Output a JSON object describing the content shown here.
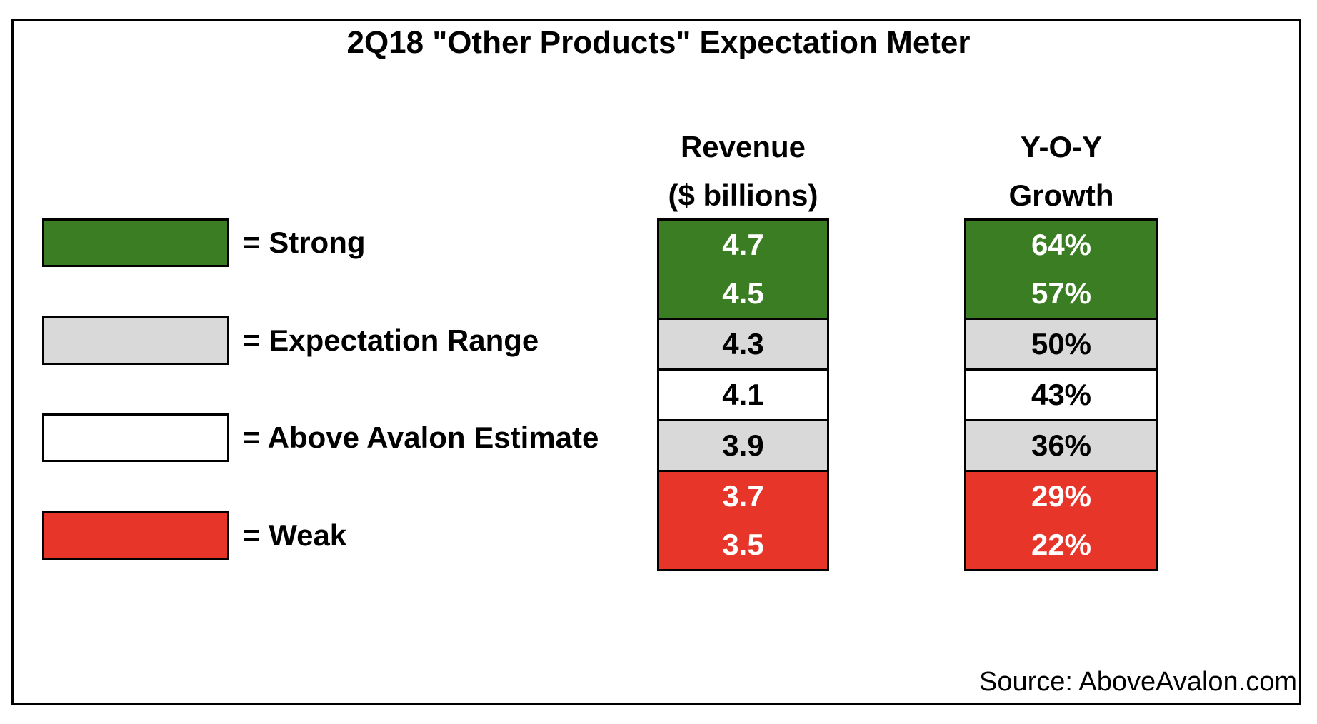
{
  "title": "2Q18 \"Other Products\" Expectation Meter",
  "source": "Source: AboveAvalon.com",
  "colors": {
    "strong": "#3a7d22",
    "expectation": "#d9d9d9",
    "estimate": "#ffffff",
    "weak": "#e8352a"
  },
  "legend": [
    {
      "label": "= Strong",
      "color": "#3a7d22"
    },
    {
      "label": "= Expectation Range",
      "color": "#d9d9d9"
    },
    {
      "label": "= Above Avalon Estimate",
      "color": "#ffffff"
    },
    {
      "label": "= Weak",
      "color": "#e8352a"
    }
  ],
  "chart_data": {
    "type": "table",
    "title": "2Q18 \"Other Products\" Expectation Meter",
    "columns": [
      {
        "header_line1": "Revenue",
        "header_line2": "($ billions)"
      },
      {
        "header_line1": "Y-O-Y Growth",
        "header_line2": ""
      }
    ],
    "rows": [
      {
        "revenue": "4.7",
        "growth": "64%",
        "category": "Strong"
      },
      {
        "revenue": "4.5",
        "growth": "57%",
        "category": "Strong"
      },
      {
        "revenue": "4.3",
        "growth": "50%",
        "category": "Expectation Range"
      },
      {
        "revenue": "4.1",
        "growth": "43%",
        "category": "Above Avalon Estimate"
      },
      {
        "revenue": "3.9",
        "growth": "36%",
        "category": "Expectation Range"
      },
      {
        "revenue": "3.7",
        "growth": "29%",
        "category": "Weak"
      },
      {
        "revenue": "3.5",
        "growth": "22%",
        "category": "Weak"
      }
    ]
  }
}
